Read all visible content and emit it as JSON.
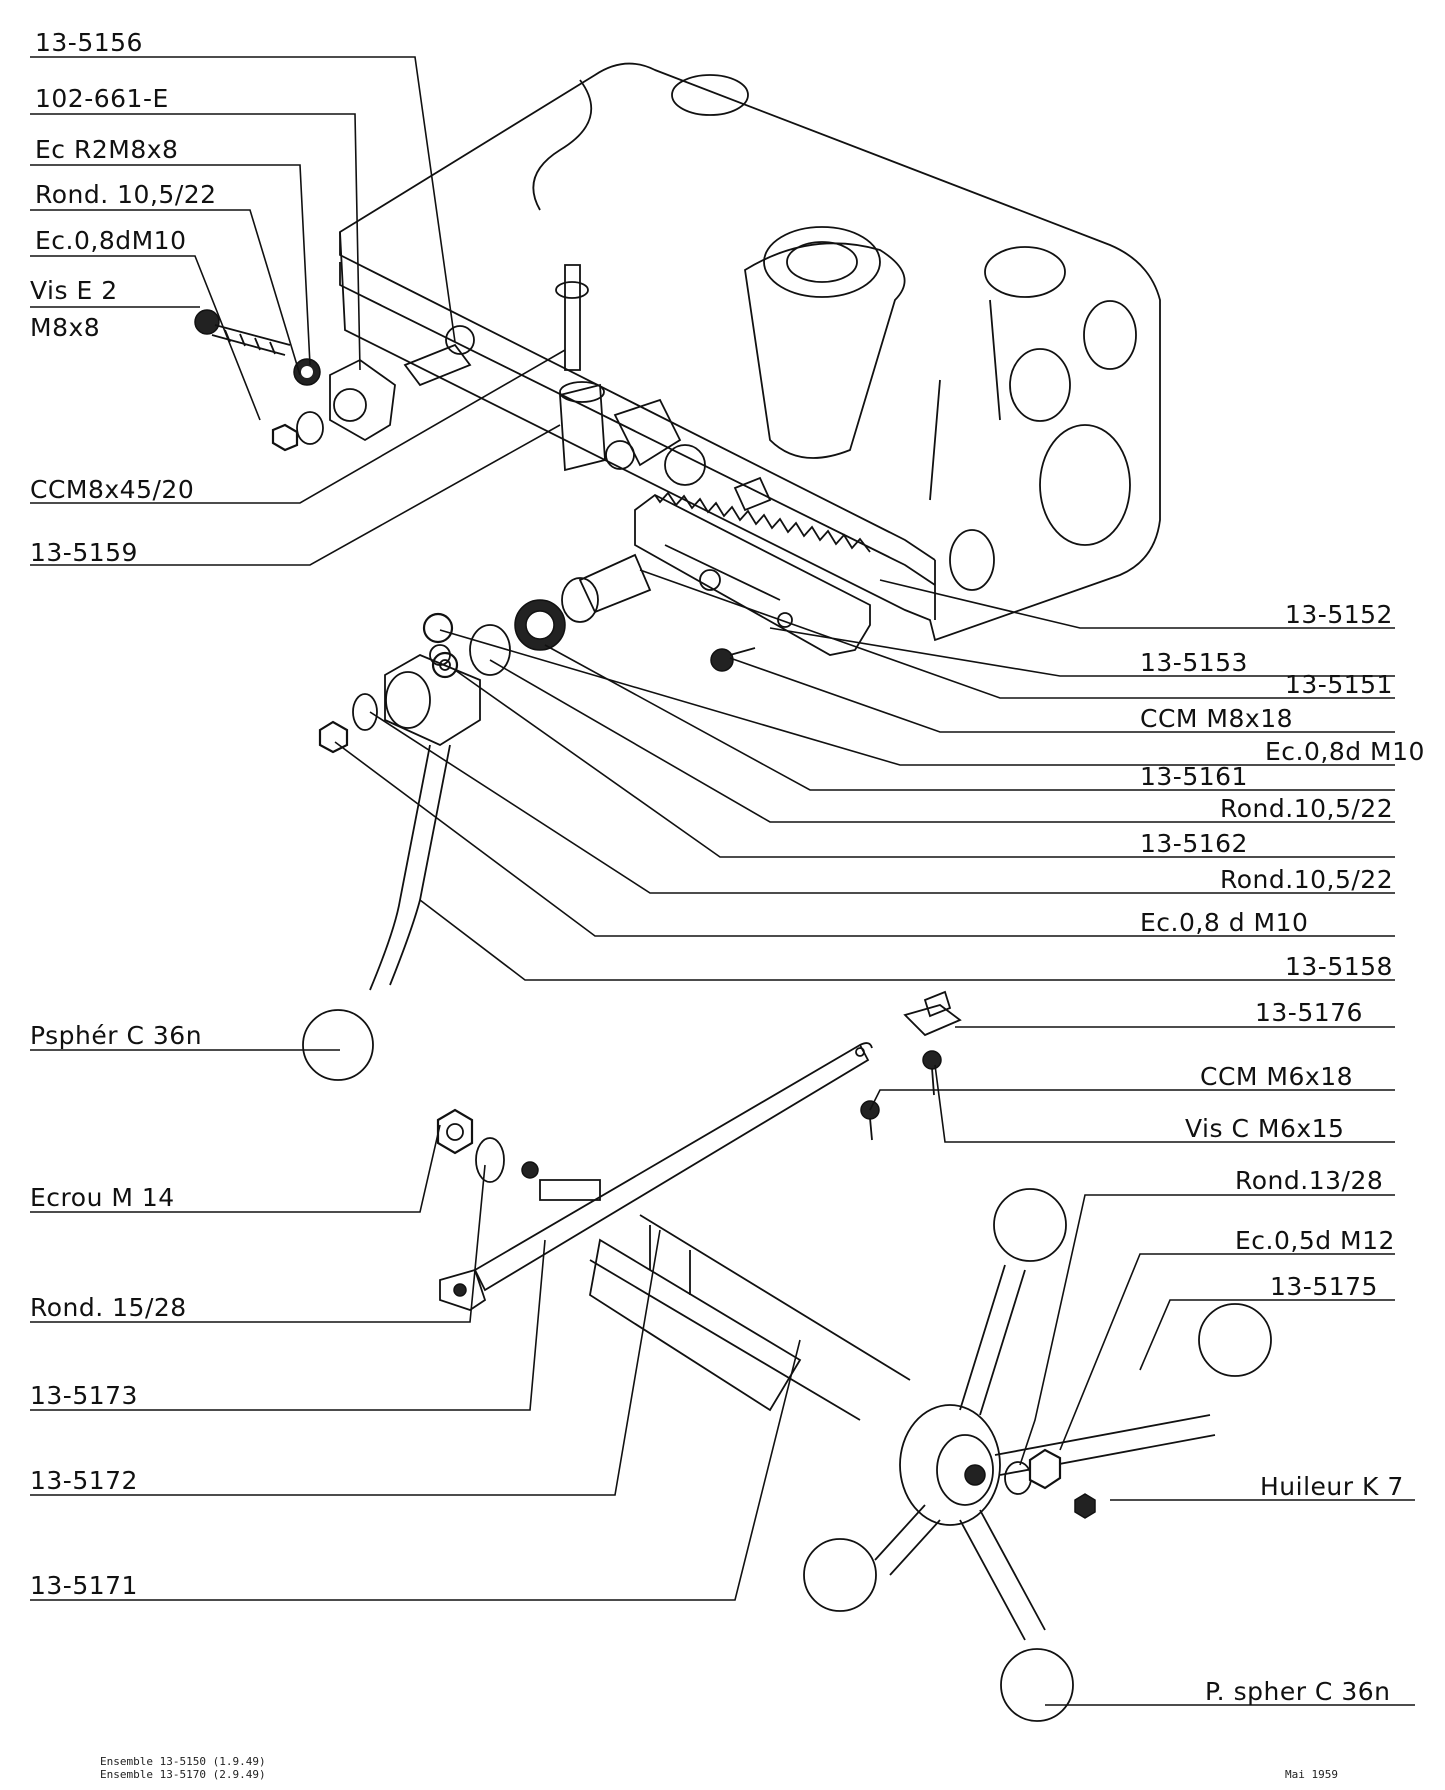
{
  "labels_left": [
    {
      "id": "l-13-5156",
      "text": "13-5156"
    },
    {
      "id": "l-102-661-e",
      "text": "102-661-E"
    },
    {
      "id": "l-ecr2m8x8",
      "text": "Ec R2M8x8"
    },
    {
      "id": "l-rond-10-5-22-a",
      "text": "Rond. 10,5/22"
    },
    {
      "id": "l-ec08dm10-a",
      "text": "Ec.0,8dM10"
    },
    {
      "id": "l-vise2",
      "text": "Vis E 2"
    },
    {
      "id": "l-m8x8",
      "text": "M8x8"
    },
    {
      "id": "l-ccm8x45-20",
      "text": "CCM8x45/20"
    },
    {
      "id": "l-13-5159",
      "text": "13-5159"
    },
    {
      "id": "l-pspher-a",
      "text": "Psphér C 36n"
    },
    {
      "id": "l-ecrou-m14",
      "text": "Ecrou M 14"
    },
    {
      "id": "l-rond-15-28",
      "text": "Rond. 15/28"
    },
    {
      "id": "l-13-5173",
      "text": "13-5173"
    },
    {
      "id": "l-13-5172",
      "text": "13-5172"
    },
    {
      "id": "l-13-5171",
      "text": "13-5171"
    }
  ],
  "labels_right": [
    {
      "id": "r-13-5152",
      "text": "13-5152"
    },
    {
      "id": "r-13-5153",
      "text": "13-5153"
    },
    {
      "id": "r-13-5151",
      "text": "13-5151"
    },
    {
      "id": "r-ccm-m8x18",
      "text": "CCM M8x18"
    },
    {
      "id": "r-ec08dm10-b",
      "text": "Ec.0,8d M10"
    },
    {
      "id": "r-13-5161",
      "text": "13-5161"
    },
    {
      "id": "r-rond-a",
      "text": "Rond.10,5/22"
    },
    {
      "id": "r-13-5162",
      "text": "13-5162"
    },
    {
      "id": "r-rond-b",
      "text": "Rond.10,5/22"
    },
    {
      "id": "r-ec08dm10-c",
      "text": "Ec.0,8 d M10"
    },
    {
      "id": "r-13-5158",
      "text": "13-5158"
    },
    {
      "id": "r-13-5176",
      "text": "13-5176"
    },
    {
      "id": "r-ccm-m6x18",
      "text": "CCM M6x18"
    },
    {
      "id": "r-vis-c-m6x15",
      "text": "Vis C M6x15"
    },
    {
      "id": "r-rond-13-28",
      "text": "Rond.13/28"
    },
    {
      "id": "r-ec05dm12",
      "text": "Ec.0,5d M12"
    },
    {
      "id": "r-13-5175",
      "text": "13-5175"
    },
    {
      "id": "r-huileur-k7",
      "text": "Huileur K 7"
    },
    {
      "id": "r-pspher-b",
      "text": "P. spher C 36n"
    }
  ],
  "footer": {
    "ensemble_1": "Ensemble 13-5150 (1.9.49)",
    "ensemble_2": "Ensemble 13-5170 (2.9.49)",
    "date": "Mai 1959"
  }
}
